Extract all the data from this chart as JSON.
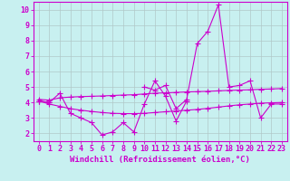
{
  "title": "",
  "xlabel": "Windchill (Refroidissement éolien,°C)",
  "bg_color": "#c8f0f0",
  "grid_color": "#b0c8c8",
  "line_color": "#cc00cc",
  "x": [
    0,
    1,
    2,
    3,
    4,
    5,
    6,
    7,
    8,
    9,
    10,
    11,
    12,
    13,
    14,
    15,
    16,
    17,
    18,
    19,
    20,
    21,
    22,
    23
  ],
  "line1": [
    4.1,
    4.0,
    4.6,
    3.3,
    3.0,
    2.7,
    1.9,
    2.1,
    2.7,
    2.1,
    3.9,
    5.4,
    4.4,
    2.8,
    4.1,
    null,
    null,
    null,
    null,
    null,
    null,
    null,
    null,
    null
  ],
  "line2": [
    4.1,
    4.0,
    null,
    null,
    null,
    null,
    null,
    null,
    null,
    null,
    5.0,
    4.8,
    5.1,
    3.6,
    4.2,
    7.8,
    8.6,
    10.3,
    5.0,
    5.1,
    5.4,
    3.0,
    3.9,
    3.9
  ],
  "line3": [
    4.2,
    4.15,
    4.3,
    4.35,
    4.38,
    4.4,
    4.42,
    4.45,
    4.48,
    4.5,
    4.55,
    4.6,
    4.62,
    4.65,
    4.68,
    4.7,
    4.72,
    4.75,
    4.78,
    4.8,
    4.82,
    4.85,
    4.87,
    4.9
  ],
  "line4": [
    4.1,
    3.9,
    3.75,
    3.6,
    3.5,
    3.42,
    3.35,
    3.3,
    3.28,
    3.28,
    3.3,
    3.35,
    3.4,
    3.45,
    3.5,
    3.55,
    3.62,
    3.7,
    3.78,
    3.85,
    3.9,
    3.95,
    3.98,
    4.0
  ],
  "ylim": [
    1.5,
    10.5
  ],
  "xlim": [
    -0.5,
    23.5
  ],
  "yticks": [
    2,
    3,
    4,
    5,
    6,
    7,
    8,
    9,
    10
  ],
  "xticks": [
    0,
    1,
    2,
    3,
    4,
    5,
    6,
    7,
    8,
    9,
    10,
    11,
    12,
    13,
    14,
    15,
    16,
    17,
    18,
    19,
    20,
    21,
    22,
    23
  ],
  "marker": "+",
  "markersize": 4,
  "linewidth": 0.8,
  "xlabel_fontsize": 6.5,
  "tick_fontsize": 6,
  "spine_color": "#cc00cc",
  "label_color": "#cc00cc"
}
